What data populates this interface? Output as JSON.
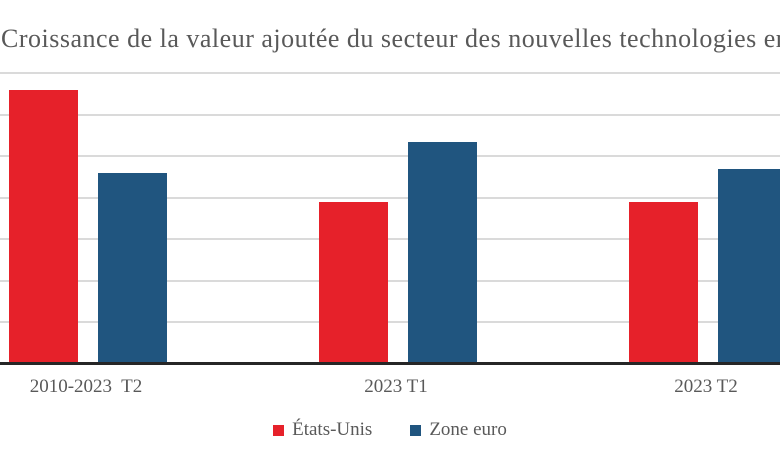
{
  "title": "Croissance de la valeur ajoutée du secteur des nouvelles technologies en %",
  "chart_data": {
    "type": "bar",
    "title": "Croissance de la valeur ajoutée du secteur des nouvelles technologies en %",
    "categories": [
      "2010-2023  T2",
      "2023 T1",
      "2023 T2"
    ],
    "series": [
      {
        "name": "États-Unis",
        "color": "#e6212a",
        "values": [
          6.6,
          3.9,
          3.9
        ]
      },
      {
        "name": "Zone euro",
        "color": "#20557f",
        "values": [
          4.6,
          5.35,
          4.7
        ]
      }
    ],
    "xlabel": "",
    "ylabel": "",
    "ylim": [
      0,
      7
    ],
    "grid": "horizontal, 1 unit spacing, no visible y tick labels",
    "legend_position": "bottom-center",
    "note": "title and rightmost blue bar clipped at right edge of image"
  },
  "colors": {
    "background": "#ffffff",
    "title_text": "#595959",
    "label_text": "#595959",
    "gridline": "#dadada",
    "axis_line": "#262626",
    "series_us": "#e6212a",
    "series_eurozone": "#20557f"
  }
}
